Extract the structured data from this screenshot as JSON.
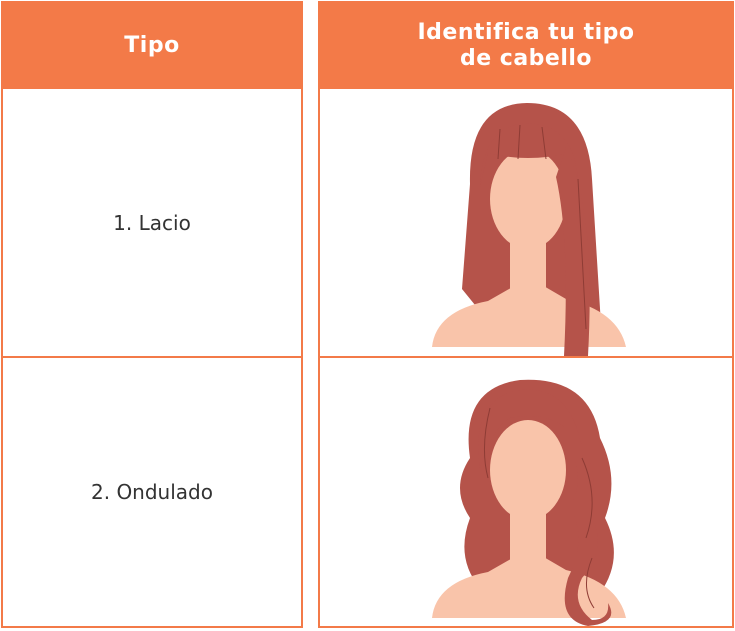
{
  "table": {
    "headers": [
      "Tipo",
      "Identifica tu tipo de cabello"
    ],
    "rows": [
      [
        "1. Lacio"
      ],
      [
        "2. Ondulado"
      ]
    ]
  }
}
